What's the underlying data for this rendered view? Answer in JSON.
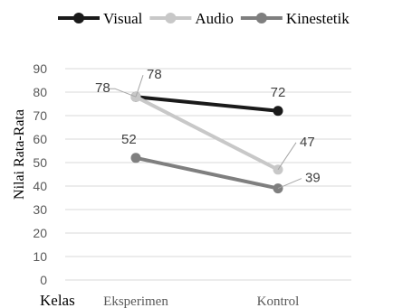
{
  "chart_data": {
    "type": "line",
    "categories": [
      "Eksperimen",
      "Kontrol"
    ],
    "series": [
      {
        "name": "Visual",
        "values": [
          78,
          72
        ],
        "color": "#1a1a1a"
      },
      {
        "name": "Audio",
        "values": [
          78,
          47
        ],
        "color": "#c8c8c8"
      },
      {
        "name": "Kinestetik",
        "values": [
          52,
          39
        ],
        "color": "#7f7f7f"
      }
    ],
    "xlabel": "Kelas",
    "ylabel": "Nilai Rata-Rata",
    "ylim": [
      0,
      90
    ],
    "yticks": [
      "0",
      "10",
      "20",
      "30",
      "40",
      "50",
      "60",
      "70",
      "80",
      "90"
    ],
    "grid": true,
    "legend": "top",
    "data_labels": [
      [
        "78",
        "72"
      ],
      [
        "78",
        "47"
      ],
      [
        "52",
        "39"
      ]
    ]
  }
}
